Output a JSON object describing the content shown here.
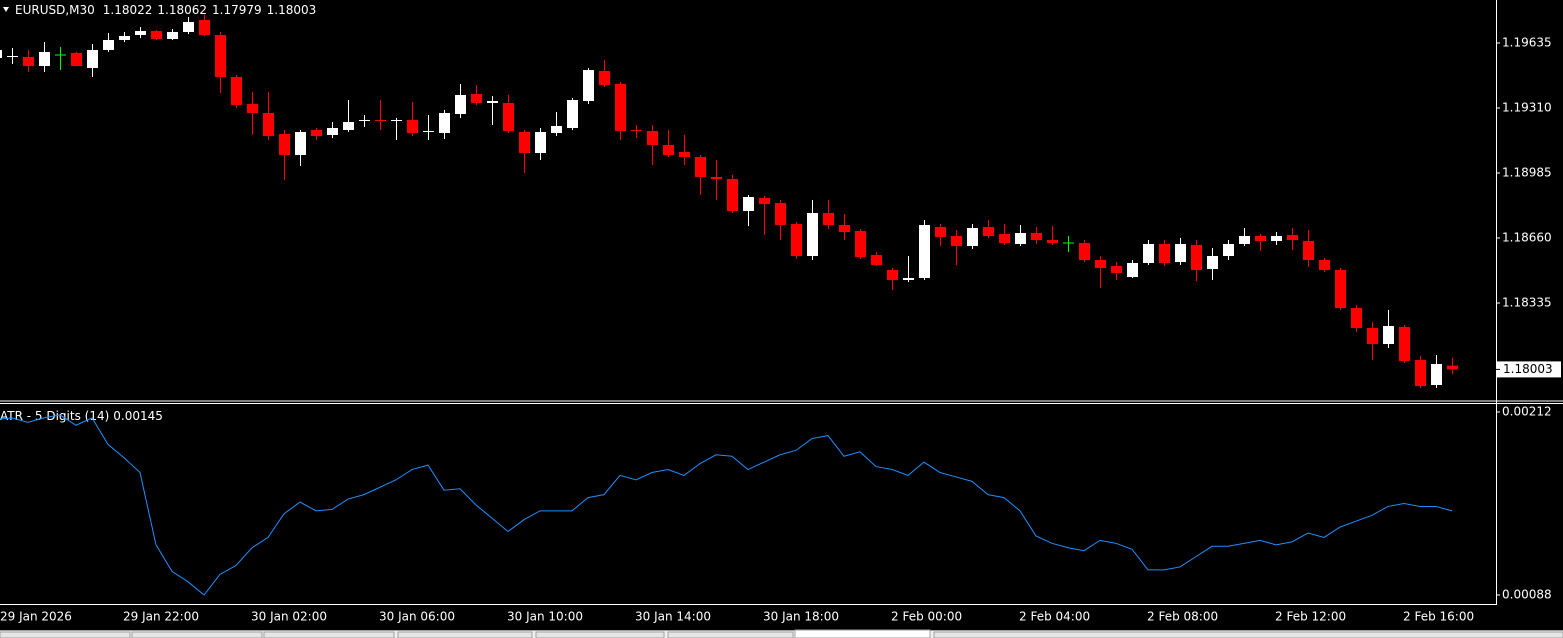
{
  "chart_data": [
    {
      "type": "candlestick",
      "title": "EURUSD,M30",
      "grid": false,
      "bull_color": "#ffffff",
      "bear_color": "#ff0000",
      "doji_color": "#00ff00",
      "ylim": [
        1.1785,
        1.1985
      ],
      "yticks": [
        1.19635,
        {
          "value": 1.1931,
          "label": "1.19310"
        },
        1.18985,
        {
          "value": 1.1866,
          "label": "1.18660"
        },
        1.18335
      ],
      "categories": [
        "29 Jan 2026",
        null,
        null,
        null,
        null,
        null,
        null,
        null,
        "29 Jan 22:00",
        null,
        null,
        null,
        null,
        null,
        null,
        null,
        "30 Jan 02:00",
        null,
        null,
        null,
        null,
        null,
        null,
        null,
        "30 Jan 06:00",
        null,
        null,
        null,
        null,
        null,
        null,
        null,
        "30 Jan 10:00",
        null,
        null,
        null,
        null,
        null,
        null,
        null,
        "30 Jan 14:00",
        null,
        null,
        null,
        null,
        null,
        null,
        null,
        "30 Jan 18:00",
        null,
        null,
        null,
        null,
        null,
        null,
        null,
        "2 Feb 00:00",
        null,
        null,
        null,
        null,
        null,
        null,
        null,
        "2 Feb 04:00",
        null,
        null,
        null,
        null,
        null,
        null,
        null,
        "2 Feb 08:00",
        null,
        null,
        null,
        null,
        null,
        null,
        null,
        "2 Feb 12:00",
        null,
        null,
        null,
        null,
        null,
        null,
        null,
        "2 Feb 16:00",
        null,
        null,
        null
      ],
      "open": [
        1.1956,
        1.19565,
        1.19565,
        1.1952,
        1.19575,
        1.19585,
        1.1951,
        1.196,
        1.1965,
        1.19675,
        1.19695,
        1.19655,
        1.1969,
        1.1975,
        1.19675,
        1.19465,
        1.1933,
        1.19285,
        1.1918,
        1.19075,
        1.192,
        1.19175,
        1.192,
        1.19245,
        1.1925,
        1.19245,
        1.1925,
        1.1919,
        1.19185,
        1.1928,
        1.1938,
        1.19335,
        1.19335,
        1.1919,
        1.19085,
        1.19185,
        1.1921,
        1.19345,
        1.19495,
        1.1943,
        1.192,
        1.19195,
        1.19125,
        1.1909,
        1.19065,
        1.18965,
        1.18955,
        1.18795,
        1.1886,
        1.18835,
        1.1873,
        1.1857,
        1.18785,
        1.18725,
        1.18695,
        1.18575,
        1.185,
        1.1845,
        1.1846,
        1.18715,
        1.1867,
        1.1862,
        1.18715,
        1.1868,
        1.1863,
        1.18685,
        1.1865,
        1.18635,
        1.18635,
        1.1855,
        1.1852,
        1.18465,
        1.18535,
        1.1863,
        1.1854,
        1.18625,
        1.18505,
        1.1857,
        1.1863,
        1.1867,
        1.18645,
        1.18675,
        1.18645,
        1.1855,
        1.185,
        1.1831,
        1.1821,
        1.1813,
        1.18215,
        1.1805,
        1.17925,
        1.18022
      ],
      "high": [
        1.19625,
        1.1961,
        1.196,
        1.1964,
        1.19615,
        1.1959,
        1.1963,
        1.19685,
        1.1969,
        1.19715,
        1.197,
        1.19705,
        1.19765,
        1.19775,
        1.1969,
        1.19475,
        1.1939,
        1.1939,
        1.192,
        1.192,
        1.1921,
        1.1924,
        1.1935,
        1.19275,
        1.1935,
        1.1926,
        1.1934,
        1.19275,
        1.193,
        1.1943,
        1.19425,
        1.1937,
        1.19375,
        1.192,
        1.1921,
        1.1929,
        1.1936,
        1.1951,
        1.1955,
        1.1944,
        1.19225,
        1.19225,
        1.192,
        1.19175,
        1.19075,
        1.1905,
        1.18975,
        1.18875,
        1.1887,
        1.1885,
        1.1874,
        1.1885,
        1.1885,
        1.1878,
        1.18705,
        1.1859,
        1.1851,
        1.1857,
        1.1875,
        1.1873,
        1.187,
        1.1873,
        1.1875,
        1.1873,
        1.18725,
        1.18715,
        1.1872,
        1.1867,
        1.1865,
        1.1857,
        1.1854,
        1.1855,
        1.1865,
        1.1865,
        1.1866,
        1.1865,
        1.1861,
        1.1865,
        1.1871,
        1.1868,
        1.1869,
        1.1871,
        1.187,
        1.1856,
        1.1851,
        1.18325,
        1.1824,
        1.183,
        1.18225,
        1.1807,
        1.18075,
        1.18062
      ],
      "low": [
        1.19425,
        1.1953,
        1.1949,
        1.1949,
        1.195,
        1.1952,
        1.19465,
        1.1959,
        1.1964,
        1.1966,
        1.1965,
        1.1965,
        1.1968,
        1.1967,
        1.19385,
        1.1931,
        1.19175,
        1.1915,
        1.1895,
        1.1902,
        1.1915,
        1.1916,
        1.1919,
        1.19215,
        1.192,
        1.1915,
        1.1917,
        1.1915,
        1.19155,
        1.1926,
        1.19325,
        1.19225,
        1.19185,
        1.18985,
        1.1905,
        1.1917,
        1.192,
        1.1933,
        1.19415,
        1.1915,
        1.1916,
        1.19025,
        1.19065,
        1.19025,
        1.18875,
        1.1885,
        1.18785,
        1.1872,
        1.18675,
        1.1865,
        1.18555,
        1.1855,
        1.18705,
        1.1865,
        1.18555,
        1.1852,
        1.184,
        1.1844,
        1.1845,
        1.1862,
        1.18525,
        1.18605,
        1.1866,
        1.18625,
        1.1862,
        1.1863,
        1.18625,
        1.1859,
        1.1854,
        1.1841,
        1.1845,
        1.1846,
        1.18525,
        1.1852,
        1.18525,
        1.18445,
        1.1845,
        1.1855,
        1.1862,
        1.18595,
        1.18625,
        1.186,
        1.18515,
        1.1849,
        1.183,
        1.1819,
        1.1805,
        1.1811,
        1.18035,
        1.1791,
        1.1791,
        1.17979
      ],
      "close": [
        1.196,
        1.1957,
        1.1952,
        1.1959,
        1.19575,
        1.1952,
        1.196,
        1.1965,
        1.1967,
        1.19695,
        1.19655,
        1.1969,
        1.1974,
        1.19675,
        1.19465,
        1.19325,
        1.19285,
        1.1917,
        1.19075,
        1.1919,
        1.1917,
        1.1921,
        1.1924,
        1.1925,
        1.19245,
        1.1925,
        1.19185,
        1.19195,
        1.19285,
        1.19375,
        1.19335,
        1.19345,
        1.19195,
        1.19085,
        1.1919,
        1.1922,
        1.1935,
        1.195,
        1.19425,
        1.19195,
        1.19195,
        1.19125,
        1.19075,
        1.19065,
        1.18965,
        1.18955,
        1.18795,
        1.18865,
        1.1883,
        1.18725,
        1.1857,
        1.18785,
        1.18725,
        1.1869,
        1.18565,
        1.18525,
        1.1845,
        1.1846,
        1.18725,
        1.18665,
        1.1862,
        1.1871,
        1.1867,
        1.18635,
        1.18685,
        1.1865,
        1.18635,
        1.18635,
        1.1855,
        1.1851,
        1.18485,
        1.18535,
        1.1863,
        1.18535,
        1.1863,
        1.185,
        1.1857,
        1.1863,
        1.1867,
        1.18645,
        1.1867,
        1.1865,
        1.1855,
        1.185,
        1.1831,
        1.1821,
        1.1813,
        1.1822,
        1.18045,
        1.1792,
        1.1803,
        1.18003
      ]
    },
    {
      "type": "line",
      "title": "ATR - 5 Digits (14)",
      "color": "#1e90ff",
      "ylim": [
        0.000819,
        0.002174
      ],
      "yticks": [
        0.00212,
        0.00088
      ],
      "values": [
        0.00207,
        0.00208,
        0.00205,
        0.00208,
        0.0021,
        0.00203,
        0.00208,
        0.0019,
        0.00181,
        0.00171,
        0.00122,
        0.00104,
        0.00097,
        0.00088,
        0.00102,
        0.00108,
        0.0012,
        0.00127,
        0.00143,
        0.00151,
        0.00145,
        0.00146,
        0.00153,
        0.00156,
        0.00161,
        0.00166,
        0.00173,
        0.00176,
        0.00159,
        0.0016,
        0.00149,
        0.0014,
        0.00131,
        0.00139,
        0.00145,
        0.00145,
        0.00145,
        0.00154,
        0.00156,
        0.00169,
        0.00166,
        0.00171,
        0.00173,
        0.00169,
        0.00177,
        0.00183,
        0.00182,
        0.00173,
        0.00178,
        0.00183,
        0.00186,
        0.00194,
        0.00196,
        0.00182,
        0.00185,
        0.00175,
        0.00173,
        0.00169,
        0.00178,
        0.00171,
        0.00168,
        0.00165,
        0.00156,
        0.00154,
        0.00145,
        0.00128,
        0.00123,
        0.0012,
        0.00118,
        0.00125,
        0.00123,
        0.00119,
        0.00105,
        0.00105,
        0.00107,
        0.00114,
        0.00121,
        0.00121,
        0.00123,
        0.00125,
        0.00122,
        0.00124,
        0.0013,
        0.00127,
        0.00134,
        0.00138,
        0.00142,
        0.00148,
        0.0015,
        0.00148,
        0.00148,
        0.00145
      ]
    }
  ]
}
